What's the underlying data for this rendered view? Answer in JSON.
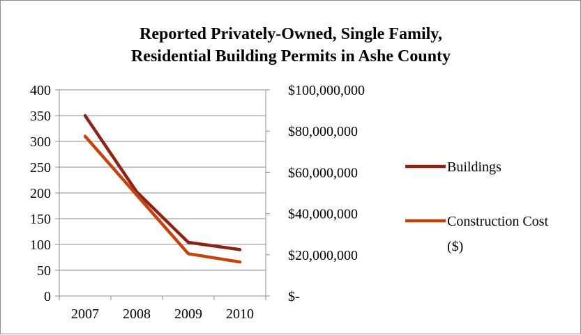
{
  "chart_data": {
    "type": "line",
    "title_lines": [
      "Reported Privately-Owned, Single Family,",
      "Residential Building Permits in Ashe County"
    ],
    "categories": [
      "2007",
      "2008",
      "2009",
      "2010"
    ],
    "y_left": {
      "ylim": [
        0,
        400
      ],
      "ticks": [
        0,
        50,
        100,
        150,
        200,
        250,
        300,
        350,
        400
      ],
      "tick_labels": [
        "0",
        "50",
        "100",
        "150",
        "200",
        "250",
        "300",
        "350",
        "400"
      ]
    },
    "y_right": {
      "ylim": [
        0,
        100000000
      ],
      "ticks": [
        0,
        20000000,
        40000000,
        60000000,
        80000000,
        100000000
      ],
      "tick_labels": [
        "$-",
        "$20,000,000",
        "$40,000,000",
        "$60,000,000",
        "$80,000,000",
        "$100,000,000"
      ]
    },
    "grid": true,
    "legend_position": "right",
    "series": [
      {
        "name": "Buildings",
        "axis": "left",
        "color": "#8b2316",
        "values": [
          350,
          202,
          104,
          90
        ]
      },
      {
        "name": "Construction Cost ($)",
        "name_lines": [
          "Construction Cost",
          "($)"
        ],
        "axis": "right",
        "color": "#c3440e",
        "values": [
          77500000,
          49000000,
          20500000,
          16500000
        ]
      }
    ]
  }
}
